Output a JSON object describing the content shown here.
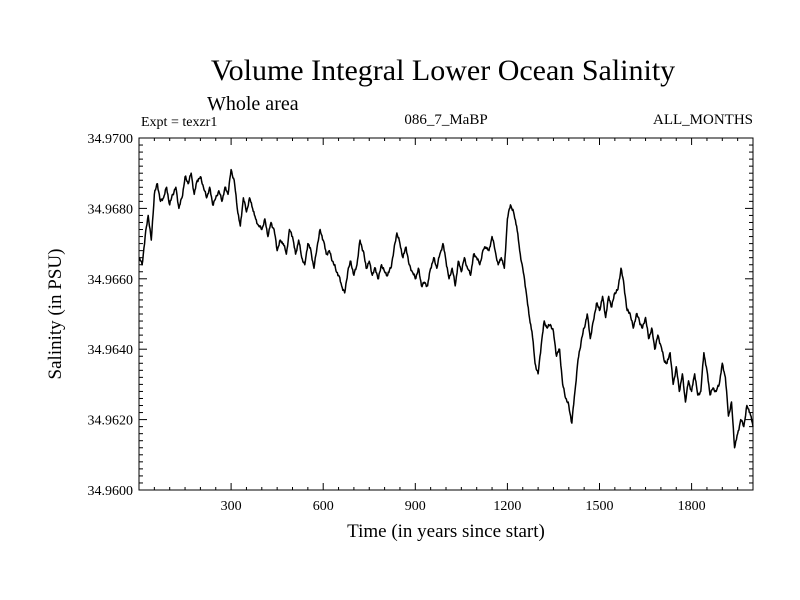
{
  "chart_data": {
    "type": "line",
    "title": "Volume Integral Lower Ocean Salinity",
    "subtitle": "Whole area",
    "experiment": "Expt = texzr1",
    "run_id": "086_7_MaBP",
    "months": "ALL_MONTHS",
    "xlabel": "Time (in years since start)",
    "ylabel": "Salinity (in PSU)",
    "xlim": [
      0,
      2000
    ],
    "ylim": [
      34.96,
      34.97
    ],
    "xticks": [
      300,
      600,
      900,
      1200,
      1500,
      1800
    ],
    "xtick_labels": [
      "300",
      "600",
      "900",
      "1200",
      "1500",
      "1800"
    ],
    "yticks": [
      34.96,
      34.962,
      34.964,
      34.966,
      34.968,
      34.97
    ],
    "ytick_labels": [
      "34.9600",
      "34.9620",
      "34.9640",
      "34.9660",
      "34.9680",
      "34.9700"
    ],
    "grid": false,
    "series": [
      {
        "name": "Salinity",
        "x": [
          0,
          10,
          20,
          30,
          40,
          50,
          60,
          70,
          80,
          90,
          100,
          110,
          120,
          130,
          140,
          150,
          160,
          170,
          180,
          190,
          200,
          210,
          220,
          230,
          240,
          250,
          260,
          270,
          280,
          290,
          300,
          310,
          320,
          330,
          340,
          350,
          360,
          370,
          380,
          390,
          400,
          410,
          420,
          430,
          440,
          450,
          460,
          470,
          480,
          490,
          500,
          510,
          520,
          530,
          540,
          550,
          560,
          570,
          580,
          590,
          600,
          610,
          620,
          630,
          640,
          650,
          660,
          670,
          680,
          690,
          700,
          710,
          720,
          730,
          740,
          750,
          760,
          770,
          780,
          790,
          800,
          810,
          820,
          830,
          840,
          850,
          860,
          870,
          880,
          890,
          900,
          910,
          920,
          930,
          940,
          950,
          960,
          970,
          980,
          990,
          1000,
          1010,
          1020,
          1030,
          1040,
          1050,
          1060,
          1070,
          1080,
          1090,
          1100,
          1110,
          1120,
          1130,
          1140,
          1150,
          1160,
          1170,
          1180,
          1190,
          1200,
          1210,
          1220,
          1230,
          1240,
          1250,
          1260,
          1270,
          1280,
          1290,
          1300,
          1310,
          1320,
          1330,
          1340,
          1350,
          1360,
          1370,
          1380,
          1390,
          1400,
          1410,
          1420,
          1430,
          1440,
          1450,
          1460,
          1470,
          1480,
          1490,
          1500,
          1510,
          1520,
          1530,
          1540,
          1550,
          1560,
          1570,
          1580,
          1590,
          1600,
          1610,
          1620,
          1630,
          1640,
          1650,
          1660,
          1670,
          1680,
          1690,
          1700,
          1710,
          1720,
          1730,
          1740,
          1750,
          1760,
          1770,
          1780,
          1790,
          1800,
          1810,
          1820,
          1830,
          1840,
          1850,
          1860,
          1870,
          1880,
          1890,
          1900,
          1910,
          1920,
          1930,
          1940,
          1950,
          1960,
          1970,
          1980,
          1990,
          2000
        ],
        "values": [
          34.9666,
          34.9664,
          34.9672,
          34.9678,
          34.9671,
          34.9684,
          34.9687,
          34.9682,
          34.9683,
          34.9686,
          34.9681,
          34.9684,
          34.9686,
          34.968,
          34.9683,
          34.9689,
          34.9687,
          34.969,
          34.9684,
          34.9688,
          34.9689,
          34.9686,
          34.9683,
          34.9686,
          34.9681,
          34.9683,
          34.9685,
          34.9682,
          34.9686,
          34.9684,
          34.9691,
          34.9688,
          34.968,
          34.9675,
          34.9683,
          34.9679,
          34.9683,
          34.968,
          34.9677,
          34.9675,
          34.9674,
          34.9677,
          34.9672,
          34.9676,
          34.9674,
          34.9668,
          34.9671,
          34.967,
          34.9667,
          34.9674,
          34.9672,
          34.9667,
          34.9671,
          34.9666,
          34.9664,
          34.967,
          34.9668,
          34.9663,
          34.9669,
          34.9674,
          34.9671,
          34.9667,
          34.9668,
          34.9665,
          34.9663,
          34.9661,
          34.9658,
          34.9656,
          34.9662,
          34.9665,
          34.9661,
          34.9664,
          34.9671,
          34.9668,
          34.9663,
          34.9665,
          34.9661,
          34.9663,
          34.966,
          34.9664,
          34.9662,
          34.9661,
          34.9663,
          34.9668,
          34.9673,
          34.967,
          34.9666,
          34.9669,
          34.9664,
          34.9662,
          34.966,
          34.9663,
          34.9658,
          34.9659,
          34.9658,
          34.9663,
          34.9666,
          34.9663,
          34.9667,
          34.967,
          34.9665,
          34.966,
          34.9663,
          34.9658,
          34.9665,
          34.9662,
          34.9666,
          34.9663,
          34.9661,
          34.9667,
          34.9666,
          34.9664,
          34.9668,
          34.9669,
          34.9668,
          34.9672,
          34.9668,
          34.9664,
          34.9666,
          34.9663,
          34.9677,
          34.9681,
          34.9679,
          34.9675,
          34.9668,
          34.9663,
          34.9657,
          34.965,
          34.9645,
          34.9636,
          34.9633,
          34.9641,
          34.9648,
          34.9646,
          34.9647,
          34.9645,
          34.9638,
          34.964,
          34.963,
          34.9626,
          34.9624,
          34.9619,
          34.9628,
          34.9637,
          34.9642,
          34.9646,
          34.965,
          34.9643,
          34.9648,
          34.9653,
          34.9651,
          34.9655,
          34.9649,
          34.9655,
          34.9652,
          34.9656,
          34.9657,
          34.9663,
          34.9658,
          34.9651,
          34.965,
          34.9646,
          34.965,
          34.9648,
          34.9646,
          34.9649,
          34.9643,
          34.9646,
          34.964,
          34.9644,
          34.9641,
          34.9637,
          34.9636,
          34.9639,
          34.963,
          34.9635,
          34.9628,
          34.9633,
          34.9625,
          34.9631,
          34.9628,
          34.9633,
          34.9627,
          34.9628,
          34.9639,
          34.9634,
          34.9627,
          34.9629,
          34.9628,
          34.963,
          34.9636,
          34.9632,
          34.9621,
          34.9625,
          34.9612,
          34.9616,
          34.962,
          34.9618,
          34.9624,
          34.9622,
          34.9618
        ]
      }
    ]
  }
}
